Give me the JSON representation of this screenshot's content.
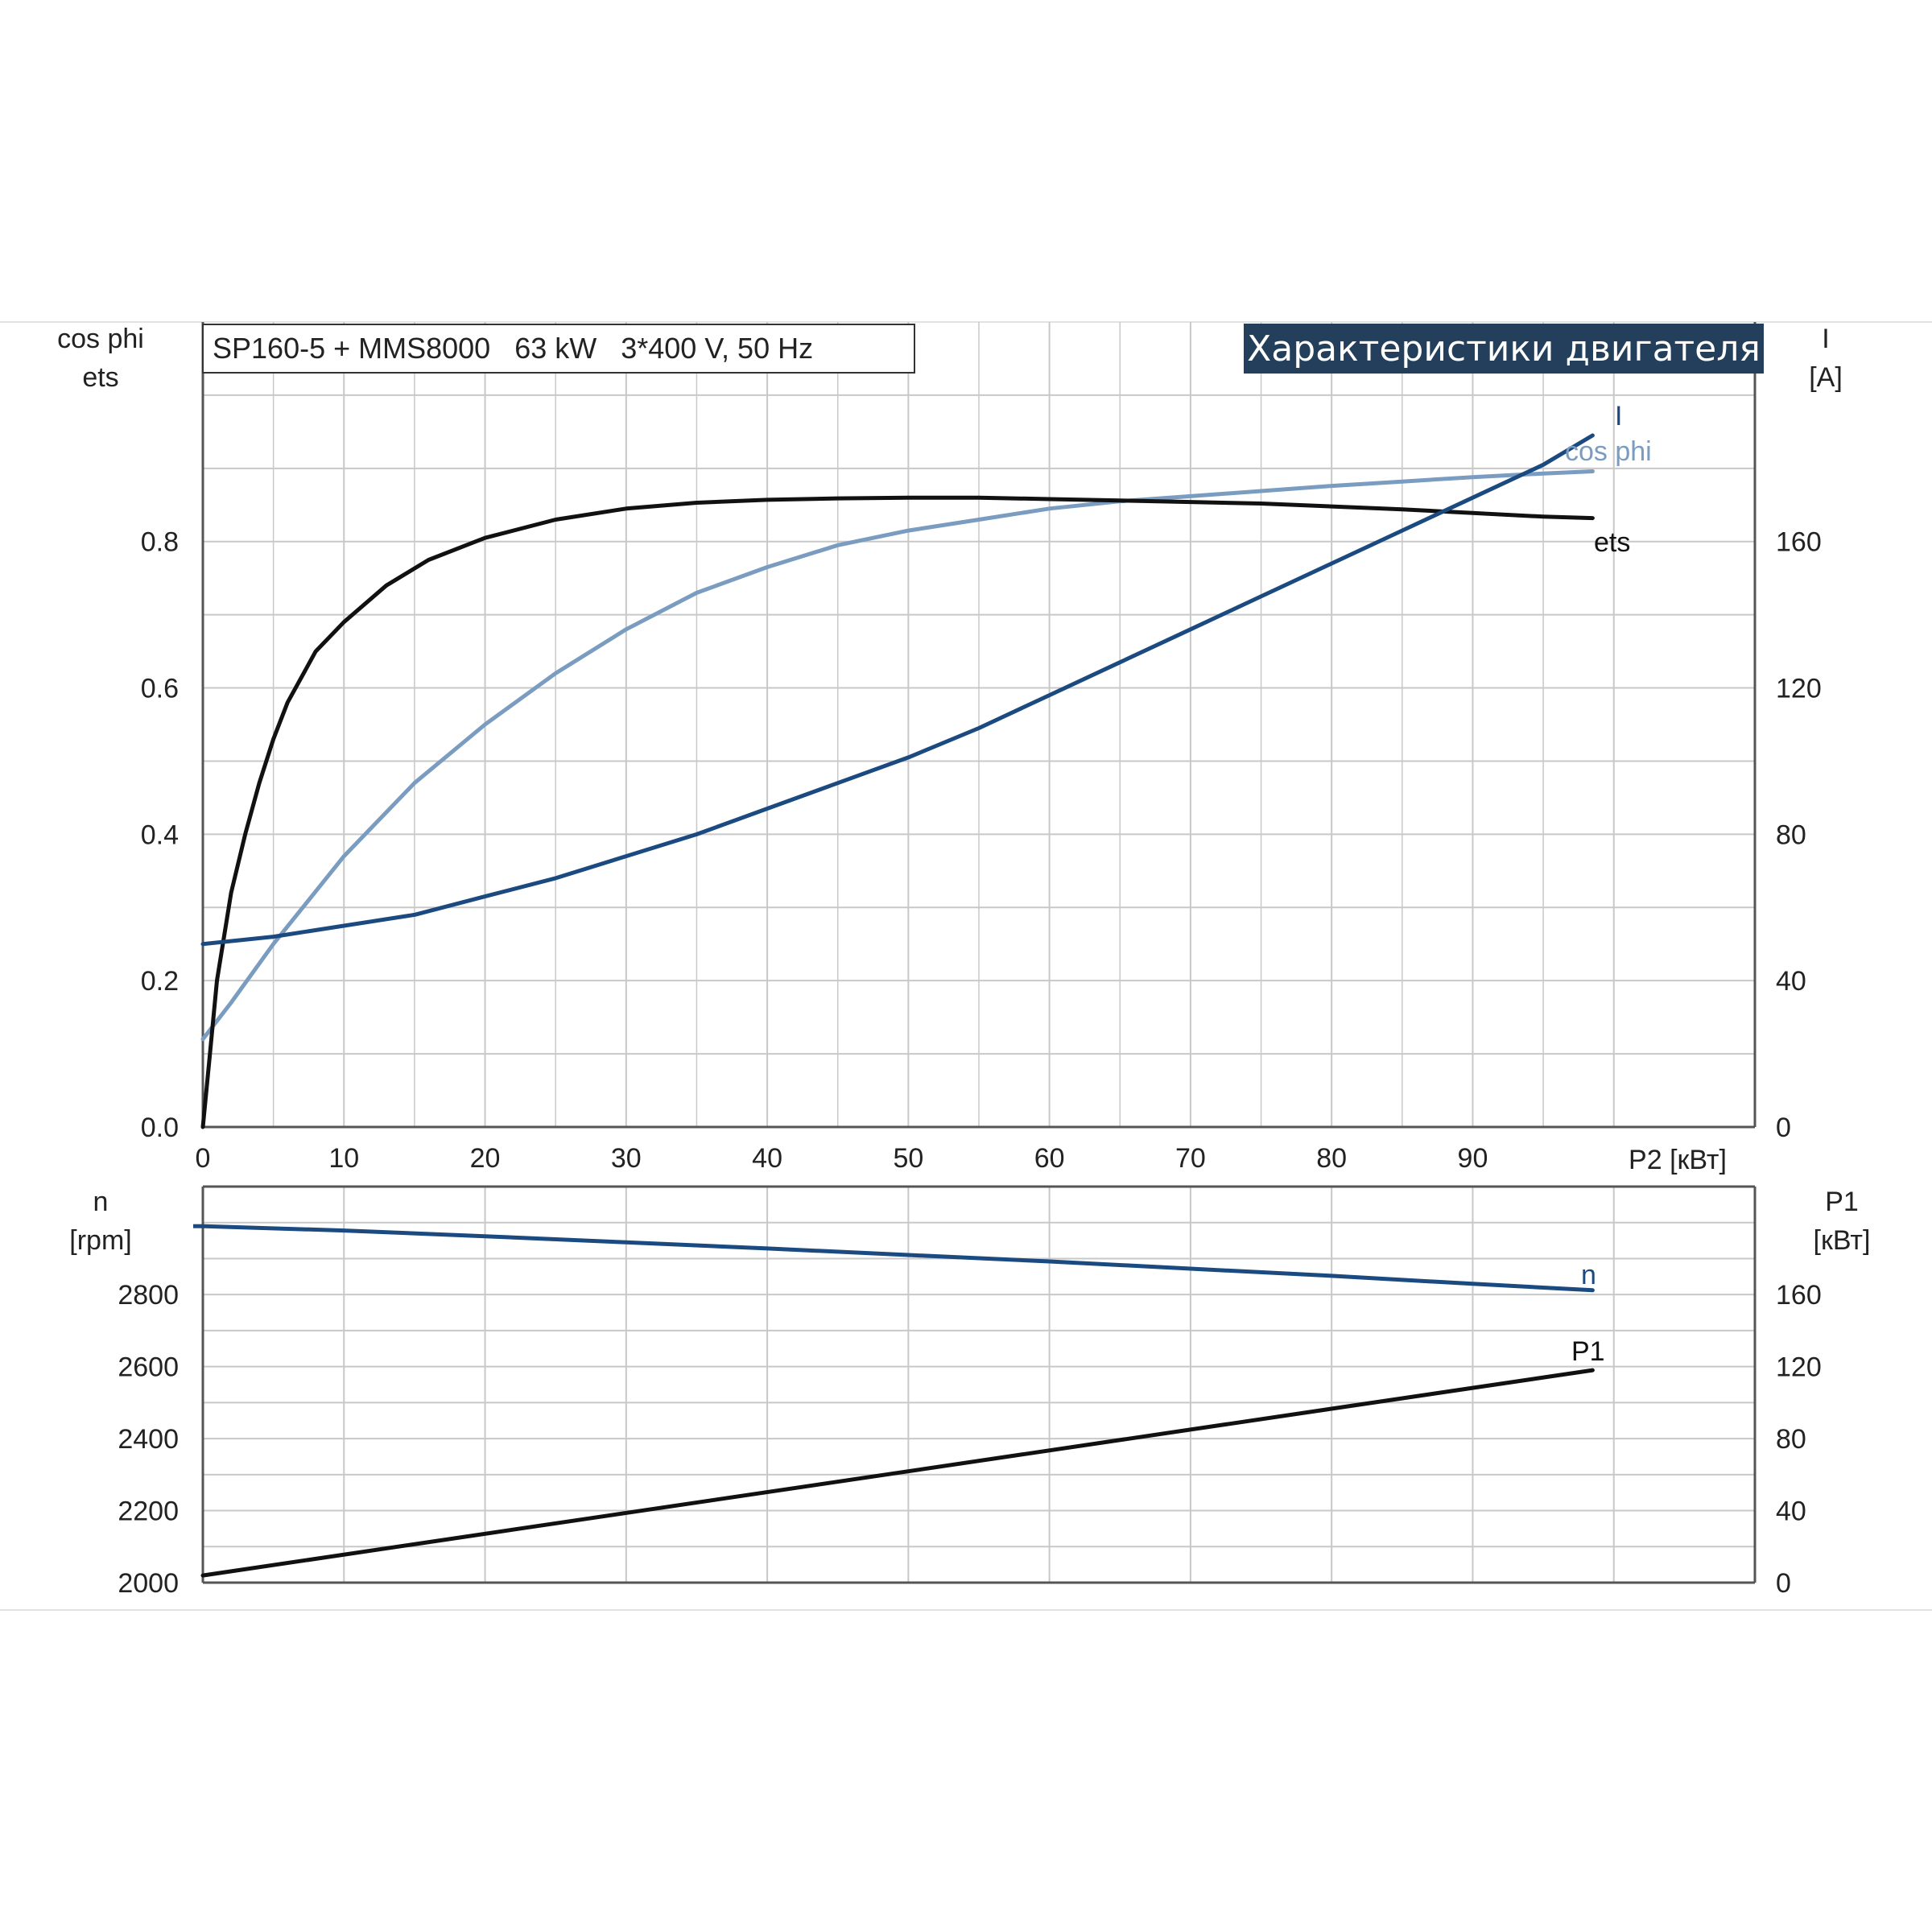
{
  "info_box": "SP160-5 + MMS8000   63 kW   3*400 V, 50 Hz",
  "banner": "Характеристики двигателя",
  "colors": {
    "ets": "#111111",
    "cos_phi": "#7a9cc0",
    "current": "#1b4a80",
    "n": "#1b4a80",
    "p1": "#111111",
    "grid": "#c8c8c8",
    "banner_bg": "#243f5c"
  },
  "chart_data": [
    {
      "type": "line",
      "x": {
        "label": "P2 [кВт]",
        "range": [
          0,
          110
        ],
        "ticks": [
          0,
          10,
          20,
          30,
          40,
          50,
          60,
          70,
          80,
          90
        ]
      },
      "y_left": {
        "label_top": "cos phi",
        "label_bottom": "ets",
        "range": [
          0,
          1.1
        ],
        "ticks": [
          "0.0",
          "0.2",
          "0.4",
          "0.6",
          "0.8"
        ]
      },
      "y_right": {
        "label_top": "I",
        "label_bottom": "[A]",
        "range": [
          0,
          220
        ],
        "ticks": [
          "0",
          "40",
          "80",
          "120",
          "160"
        ]
      },
      "grid": true,
      "series": [
        {
          "name": "ets",
          "axis": "left",
          "label": "ets",
          "x": [
            0,
            0.5,
            1,
            2,
            3,
            4,
            5,
            6,
            8,
            10,
            13,
            16,
            20,
            25,
            30,
            35,
            40,
            45,
            50,
            55,
            60,
            65,
            70,
            75,
            80,
            85,
            90,
            95,
            98.5
          ],
          "y": [
            0,
            0.1,
            0.2,
            0.32,
            0.4,
            0.47,
            0.53,
            0.58,
            0.65,
            0.69,
            0.74,
            0.775,
            0.805,
            0.83,
            0.845,
            0.853,
            0.857,
            0.859,
            0.86,
            0.86,
            0.858,
            0.856,
            0.854,
            0.852,
            0.848,
            0.844,
            0.839,
            0.834,
            0.832
          ]
        },
        {
          "name": "cos phi",
          "axis": "left",
          "label": "cos phi",
          "x": [
            0,
            2,
            5,
            10,
            15,
            20,
            25,
            30,
            35,
            40,
            45,
            50,
            55,
            60,
            65,
            70,
            75,
            80,
            85,
            90,
            95,
            98.5
          ],
          "y": [
            0.12,
            0.17,
            0.25,
            0.37,
            0.47,
            0.55,
            0.62,
            0.68,
            0.73,
            0.765,
            0.795,
            0.815,
            0.83,
            0.845,
            0.855,
            0.862,
            0.869,
            0.876,
            0.882,
            0.888,
            0.893,
            0.896
          ]
        },
        {
          "name": "I",
          "axis": "right",
          "label": "I",
          "x": [
            0,
            5,
            10,
            15,
            20,
            25,
            30,
            35,
            40,
            45,
            50,
            55,
            60,
            65,
            70,
            75,
            80,
            85,
            90,
            95,
            98.5
          ],
          "y": [
            50,
            52,
            55,
            58,
            63,
            68,
            74,
            80,
            87,
            94,
            101,
            109,
            118,
            127,
            136,
            145,
            154,
            163,
            172,
            181,
            189
          ]
        }
      ]
    },
    {
      "type": "line",
      "x": {
        "range": [
          0,
          110
        ]
      },
      "y_left": {
        "label_top": "n",
        "label_bottom": "[rpm]",
        "range": [
          2000,
          3100
        ],
        "ticks": [
          "2000",
          "2200",
          "2400",
          "2600",
          "2800"
        ]
      },
      "y_right": {
        "label_top": "P1",
        "label_bottom": "[кВт]",
        "range": [
          0,
          220
        ],
        "ticks": [
          "0",
          "40",
          "80",
          "120",
          "160"
        ]
      },
      "grid": true,
      "series": [
        {
          "name": "n",
          "axis": "left",
          "label": "n",
          "x": [
            0,
            10,
            20,
            30,
            40,
            50,
            60,
            70,
            80,
            90,
            98.5
          ],
          "y": [
            2990,
            2978,
            2962,
            2945,
            2928,
            2910,
            2892,
            2872,
            2852,
            2830,
            2812
          ]
        },
        {
          "name": "P1",
          "axis": "right",
          "label": "P1",
          "x": [
            0,
            98.5
          ],
          "y": [
            4,
            118
          ]
        }
      ]
    }
  ]
}
